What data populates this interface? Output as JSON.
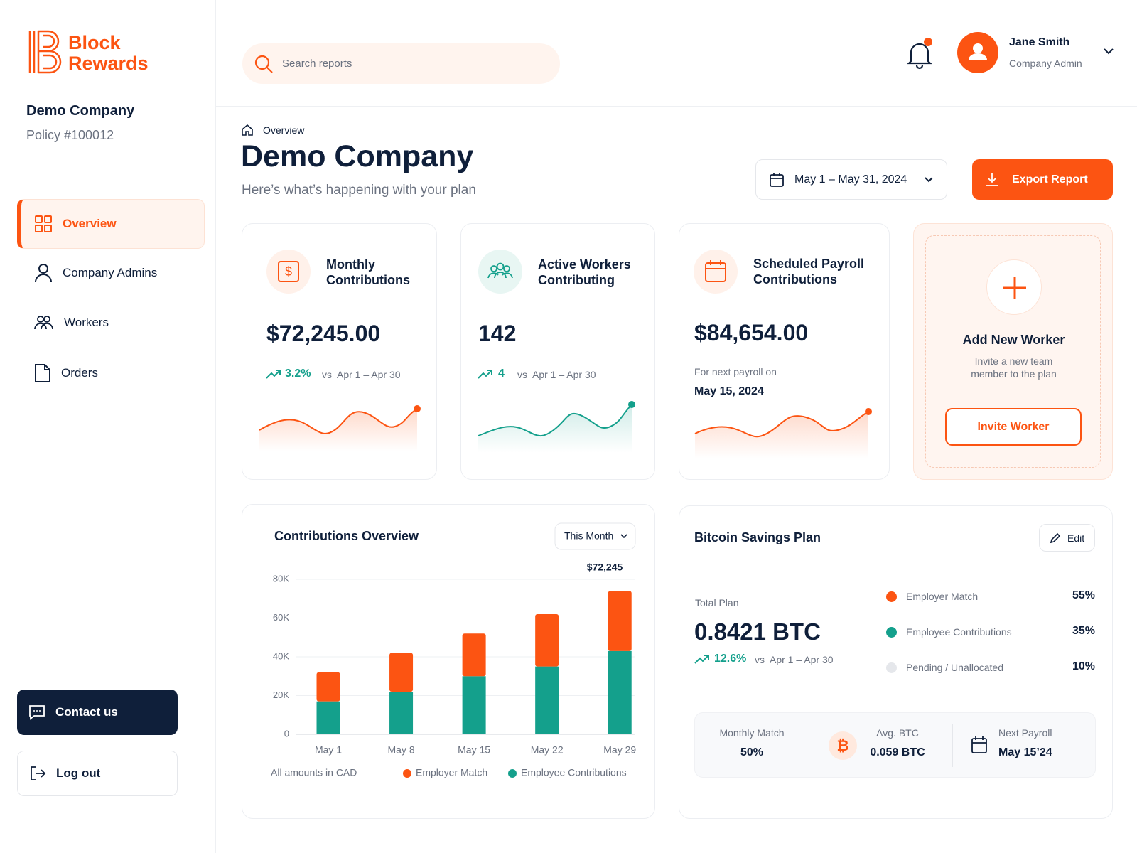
{
  "sidebar": {
    "logo_lines": [
      "Block",
      "Rewards"
    ],
    "company": "Demo Company",
    "policy": "Policy #100012",
    "nav": [
      "Overview",
      "Company Admins",
      "Workers",
      "Orders"
    ],
    "contact": "Contact us",
    "logout": "Log out"
  },
  "header": {
    "search_placeholder": "Search reports",
    "user_name": "Jane Smith",
    "user_role": "Company Admin"
  },
  "page": {
    "breadcrumb": "Overview",
    "title": "Demo Company",
    "subtitle": "Here’s what’s happening with your plan",
    "date_range": "May 1 – May 31, 2024",
    "export": "Export Report"
  },
  "cards": [
    {
      "title_lines": [
        "Monthly",
        "Contributions"
      ],
      "value": "$72,245.00",
      "change": "3.2%",
      "compare": "vs  Apr 1 – Apr 30"
    },
    {
      "title_lines": [
        "Active Workers",
        "Contributing"
      ],
      "value": "142",
      "change": "4",
      "compare": "vs  Apr 1 – Apr 30"
    },
    {
      "title_lines": [
        "Scheduled Payroll",
        "Contributions"
      ],
      "value": "$84,654.00",
      "note": "For next payroll on",
      "date": "May 15, 2024"
    }
  ],
  "add_worker": {
    "title": "Add New Worker",
    "description": "Invite a new team member to the plan",
    "button": "Invite Worker"
  },
  "chart_data": {
    "type": "bar",
    "stacked": true,
    "title": "Contributions Overview",
    "period": "This Month",
    "annotation": "$72,245",
    "note": "All amounts in CAD",
    "categories": [
      "May 1",
      "May 8",
      "May 15",
      "May 22",
      "May 29"
    ],
    "series": [
      {
        "name": "Employer Match",
        "color": "#fc5412",
        "values": [
          15000,
          20000,
          22000,
          27000,
          31000
        ]
      },
      {
        "name": "Employee Contributions",
        "color": "#14a08c",
        "values": [
          17000,
          22000,
          30000,
          35000,
          43000
        ]
      }
    ],
    "ylim": [
      0,
      80000
    ],
    "yticks": [
      0,
      {
        "value": 20000,
        "label": "20K"
      },
      {
        "value": 40000,
        "label": "40K"
      },
      {
        "value": 60000,
        "label": "60K"
      },
      {
        "value": 80000,
        "label": "80K"
      }
    ],
    "grid": true
  },
  "bitcoin": {
    "title": "Bitcoin Savings Plan",
    "edit": "Edit",
    "total_label": "Total Plan",
    "total": "0.8421 BTC",
    "change": "12.6%",
    "compare": "vs  Apr 1 – Apr 30",
    "allocation": [
      {
        "label": "Employer Match",
        "share": "55%"
      },
      {
        "label": "Employee Contributions",
        "share": "35%"
      },
      {
        "label": "Pending / Unallocated",
        "share": "10%"
      }
    ],
    "stats": [
      {
        "label": "Monthly Match",
        "value": "50%"
      },
      {
        "label": "Avg. BTC",
        "value": "0.059 BTC"
      },
      {
        "label": "Next Payroll",
        "value": "May 15’24"
      }
    ]
  }
}
